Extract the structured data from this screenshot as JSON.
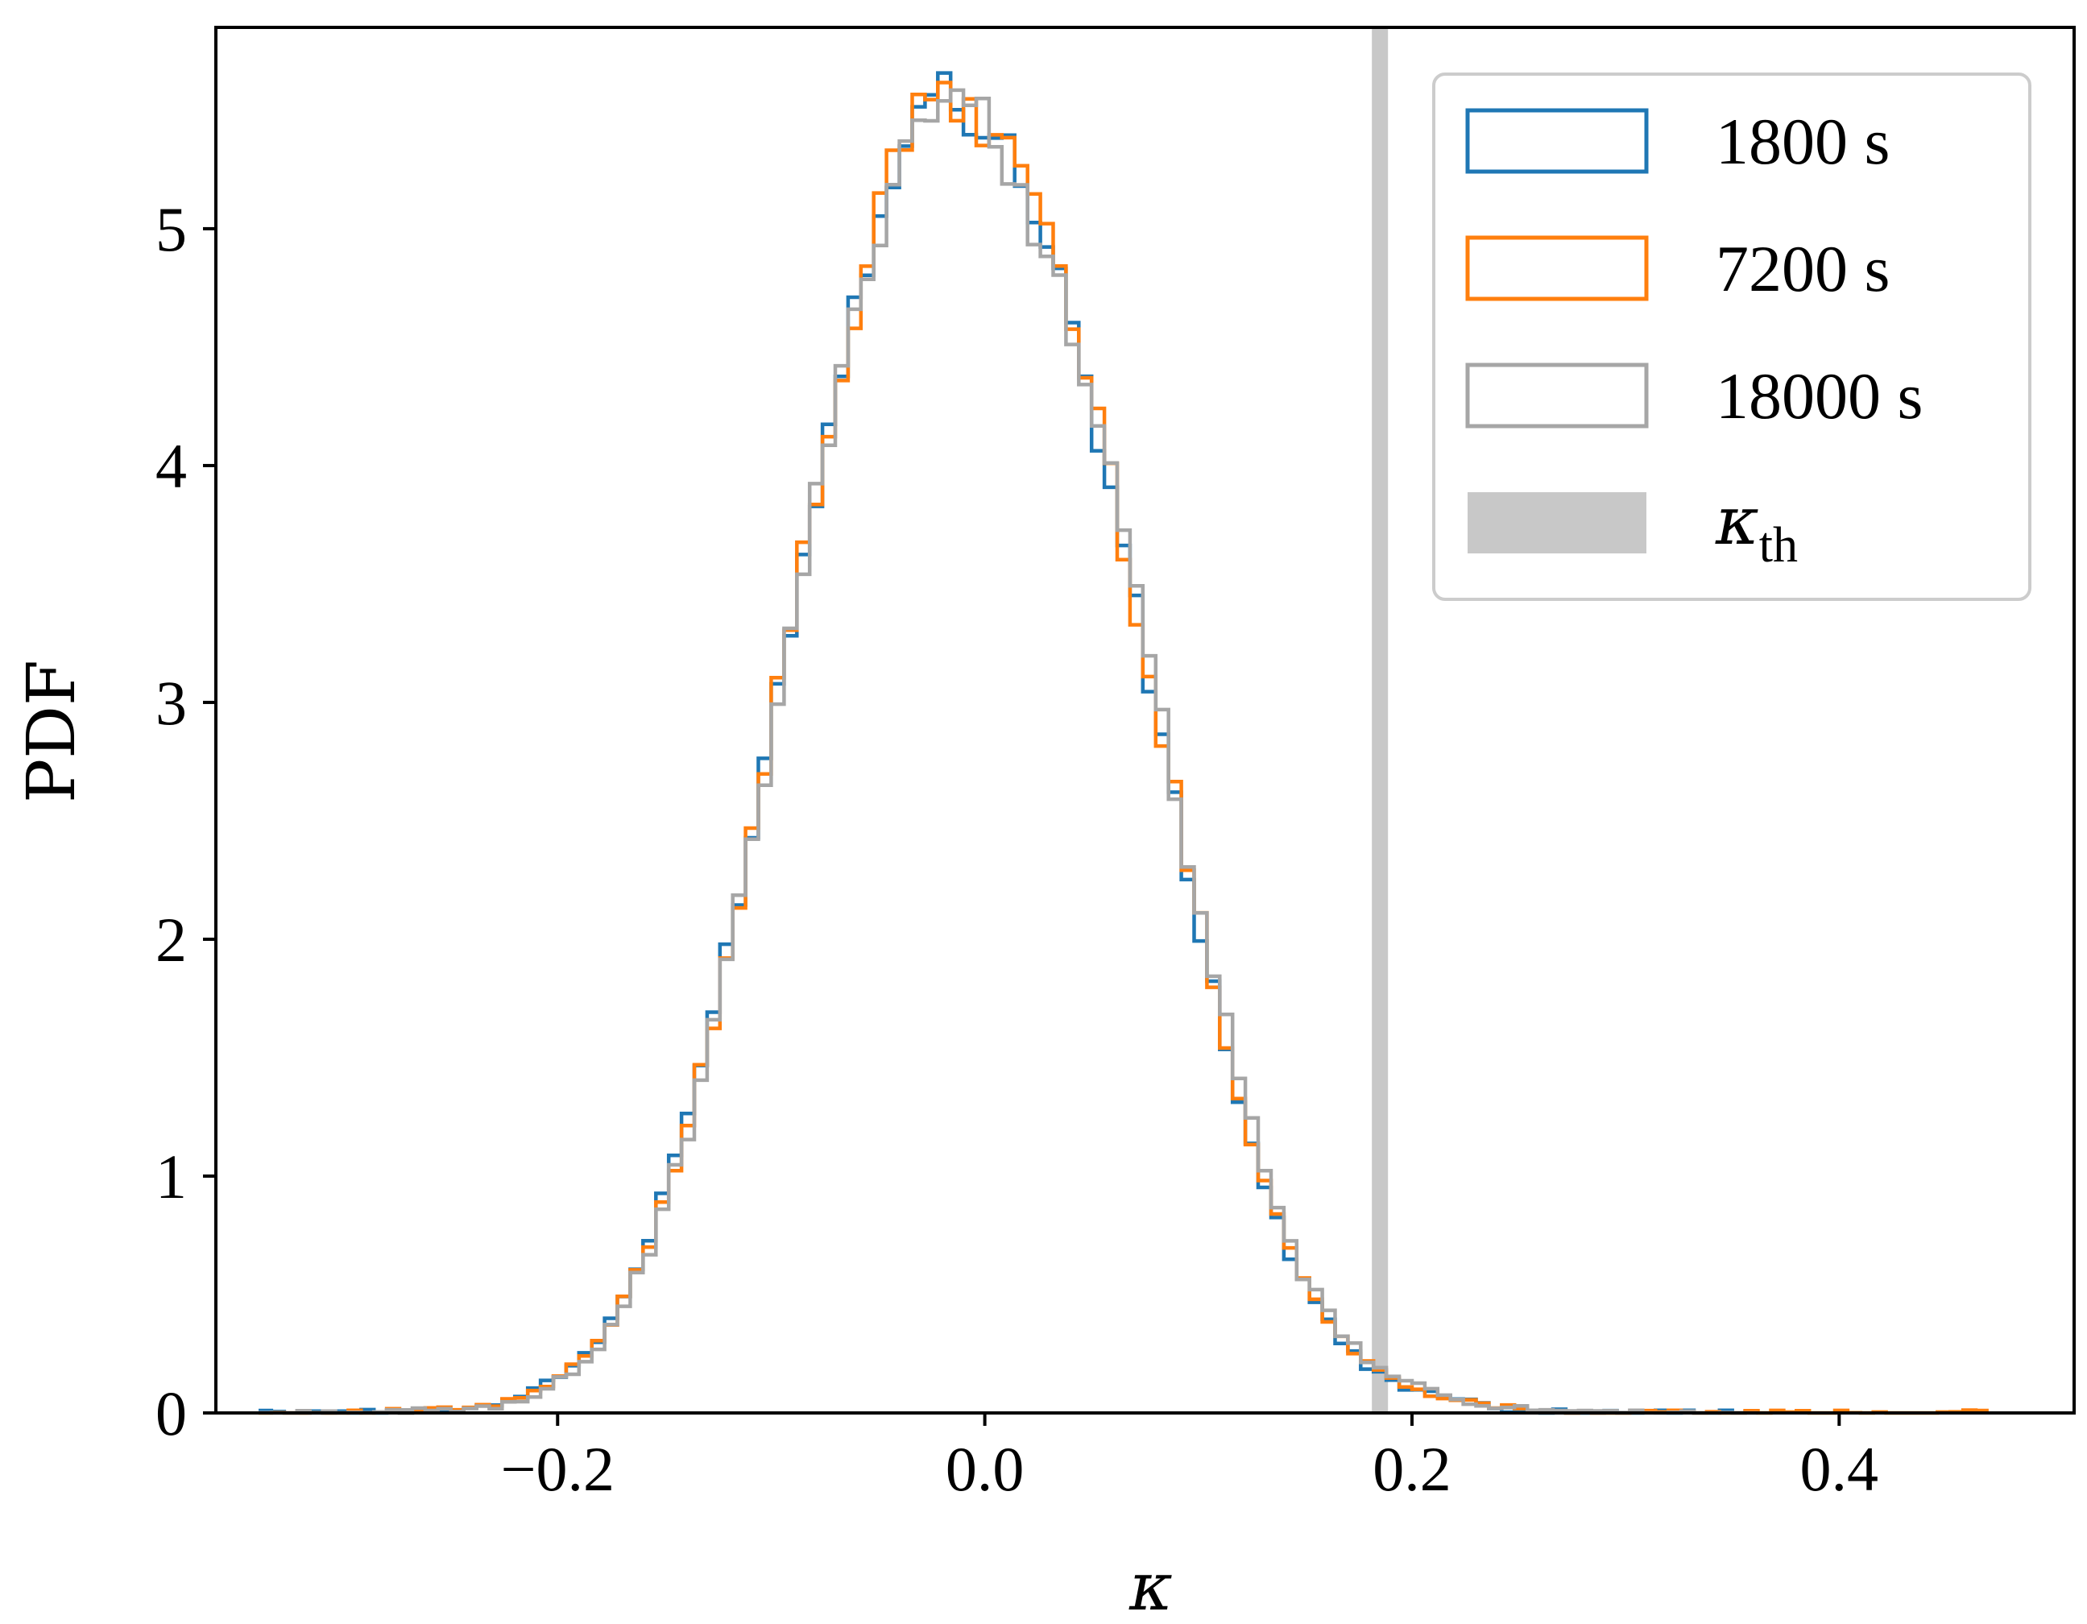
{
  "chart_data": {
    "type": "histogram-step",
    "xlabel": "κ",
    "ylabel": "PDF",
    "xlim": [
      -0.36,
      0.51
    ],
    "ylim": [
      0,
      5.85
    ],
    "x_ticks": [
      -0.2,
      0.0,
      0.2,
      0.4
    ],
    "x_tick_labels": [
      "−0.2",
      "0.0",
      "0.2",
      "0.4"
    ],
    "y_ticks": [
      0,
      1,
      2,
      3,
      4,
      5
    ],
    "y_tick_labels": [
      "0",
      "1",
      "2",
      "3",
      "4",
      "5"
    ],
    "grid": false,
    "legend_position": "top-right",
    "bin_width": 0.006,
    "distribution_summary": {
      "mean": -0.007,
      "std": 0.072,
      "peak_pdf": 5.55
    },
    "series": [
      {
        "name": "1800 s",
        "color": "#1f77b4",
        "x": [
          -0.34,
          -0.3,
          -0.26,
          -0.23,
          -0.22,
          -0.21,
          -0.2,
          -0.19,
          -0.18,
          -0.17,
          -0.16,
          -0.15,
          -0.14,
          -0.13,
          -0.12,
          -0.11,
          -0.1,
          -0.09,
          -0.08,
          -0.07,
          -0.06,
          -0.05,
          -0.04,
          -0.03,
          -0.02,
          -0.01,
          0.0,
          0.01,
          0.02,
          0.03,
          0.04,
          0.05,
          0.06,
          0.07,
          0.08,
          0.09,
          0.1,
          0.11,
          0.12,
          0.13,
          0.14,
          0.15,
          0.16,
          0.17,
          0.18,
          0.19,
          0.2,
          0.21,
          0.22,
          0.23,
          0.24,
          0.25,
          0.26,
          0.28,
          0.3,
          0.33,
          0.36
        ],
        "y": [
          0.0,
          0.0,
          0.01,
          0.03,
          0.07,
          0.1,
          0.15,
          0.22,
          0.32,
          0.47,
          0.67,
          0.91,
          1.22,
          1.58,
          1.98,
          2.43,
          2.9,
          3.38,
          3.86,
          4.3,
          4.72,
          5.08,
          5.35,
          5.52,
          5.58,
          5.52,
          5.44,
          5.35,
          5.17,
          4.92,
          4.62,
          4.26,
          3.86,
          3.42,
          2.96,
          2.51,
          2.07,
          1.67,
          1.3,
          0.98,
          0.73,
          0.53,
          0.38,
          0.27,
          0.19,
          0.14,
          0.1,
          0.08,
          0.06,
          0.04,
          0.02,
          0.01,
          0.01,
          0.0,
          0.0,
          0.0,
          0.0
        ]
      },
      {
        "name": "7200 s",
        "color": "#ff7f0e",
        "x": [
          -0.34,
          -0.3,
          -0.26,
          -0.23,
          -0.22,
          -0.21,
          -0.2,
          -0.19,
          -0.18,
          -0.17,
          -0.16,
          -0.15,
          -0.14,
          -0.13,
          -0.12,
          -0.11,
          -0.1,
          -0.09,
          -0.08,
          -0.07,
          -0.06,
          -0.05,
          -0.04,
          -0.03,
          -0.02,
          -0.01,
          0.0,
          0.01,
          0.02,
          0.03,
          0.04,
          0.05,
          0.06,
          0.07,
          0.08,
          0.09,
          0.1,
          0.11,
          0.12,
          0.13,
          0.14,
          0.15,
          0.16,
          0.17,
          0.18,
          0.19,
          0.2,
          0.21,
          0.22,
          0.23,
          0.24,
          0.25,
          0.26,
          0.28,
          0.3,
          0.33,
          0.36,
          0.4,
          0.45,
          0.47
        ],
        "y": [
          0.0,
          0.0,
          0.01,
          0.03,
          0.06,
          0.09,
          0.14,
          0.21,
          0.31,
          0.45,
          0.66,
          0.9,
          1.2,
          1.56,
          1.96,
          2.41,
          2.88,
          3.37,
          3.85,
          4.28,
          4.68,
          5.05,
          5.33,
          5.5,
          5.54,
          5.5,
          5.42,
          5.38,
          5.22,
          4.98,
          4.65,
          4.3,
          3.9,
          3.45,
          3.0,
          2.55,
          2.1,
          1.7,
          1.33,
          1.01,
          0.76,
          0.55,
          0.4,
          0.28,
          0.2,
          0.15,
          0.11,
          0.08,
          0.06,
          0.04,
          0.03,
          0.02,
          0.01,
          0.0,
          0.0,
          0.0,
          0.0,
          0.0,
          0.0,
          0.0
        ]
      },
      {
        "name": "18000 s",
        "color": "#a6a6a6",
        "x": [
          -0.34,
          -0.3,
          -0.26,
          -0.23,
          -0.22,
          -0.21,
          -0.2,
          -0.19,
          -0.18,
          -0.17,
          -0.16,
          -0.15,
          -0.14,
          -0.13,
          -0.12,
          -0.11,
          -0.1,
          -0.09,
          -0.08,
          -0.07,
          -0.06,
          -0.05,
          -0.04,
          -0.03,
          -0.02,
          -0.01,
          0.0,
          0.01,
          0.02,
          0.03,
          0.04,
          0.05,
          0.06,
          0.07,
          0.08,
          0.09,
          0.1,
          0.11,
          0.12,
          0.13,
          0.14,
          0.15,
          0.16,
          0.17,
          0.18,
          0.19,
          0.2,
          0.21,
          0.22,
          0.23,
          0.24,
          0.25,
          0.26,
          0.28,
          0.3,
          0.33,
          0.36
        ],
        "y": [
          0.0,
          0.0,
          0.01,
          0.02,
          0.05,
          0.08,
          0.13,
          0.2,
          0.29,
          0.43,
          0.62,
          0.86,
          1.15,
          1.5,
          1.9,
          2.36,
          2.84,
          3.33,
          3.8,
          4.25,
          4.64,
          5.0,
          5.3,
          5.48,
          5.56,
          5.55,
          5.44,
          5.3,
          5.1,
          4.88,
          4.6,
          4.28,
          3.9,
          3.48,
          3.03,
          2.6,
          2.14,
          1.74,
          1.36,
          1.04,
          0.78,
          0.57,
          0.42,
          0.3,
          0.22,
          0.16,
          0.12,
          0.09,
          0.06,
          0.04,
          0.03,
          0.02,
          0.01,
          0.0,
          0.0,
          0.0,
          0.0
        ]
      }
    ],
    "vertical_band": {
      "name": "κth",
      "x": 0.185,
      "color": "#c8c8c8"
    },
    "legend": [
      {
        "label": "1800 s",
        "color": "#1f77b4",
        "style": "outline"
      },
      {
        "label": "7200 s",
        "color": "#ff7f0e",
        "style": "outline"
      },
      {
        "label": "18000 s",
        "color": "#a6a6a6",
        "style": "outline"
      },
      {
        "label": "κth",
        "label_main": "κ",
        "label_sub": "th",
        "color": "#c8c8c8",
        "style": "filled"
      }
    ]
  }
}
